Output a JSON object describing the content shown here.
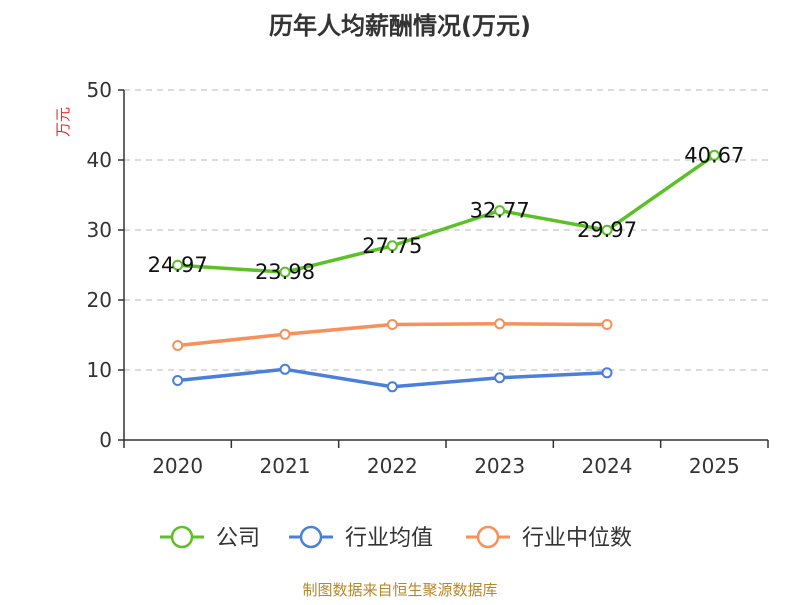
{
  "chart_data": {
    "type": "line",
    "title": "历年人均薪酬情况(万元)",
    "ylabel": "万元",
    "xlabel": "",
    "categories": [
      "2020",
      "2021",
      "2022",
      "2023",
      "2024",
      "2025"
    ],
    "ylim": [
      0,
      50
    ],
    "yticks": [
      0,
      10,
      20,
      30,
      40,
      50
    ],
    "grid": true,
    "legend_position": "bottom",
    "series": [
      {
        "name": "公司",
        "values": [
          24.97,
          23.98,
          27.75,
          32.77,
          29.97,
          40.67
        ],
        "labels": [
          "24.97",
          "23.98",
          "27.75",
          "32.77",
          "29.97",
          "40.67"
        ],
        "color": "#5cc126"
      },
      {
        "name": "行业均值",
        "values": [
          8.5,
          10.1,
          7.6,
          8.9,
          9.6,
          null
        ],
        "color": "#4a7fdc"
      },
      {
        "name": "行业中位数",
        "values": [
          13.5,
          15.1,
          16.5,
          16.6,
          16.5,
          null
        ],
        "color": "#f7905a"
      }
    ]
  },
  "source": "制图数据来自恒生聚源数据库"
}
